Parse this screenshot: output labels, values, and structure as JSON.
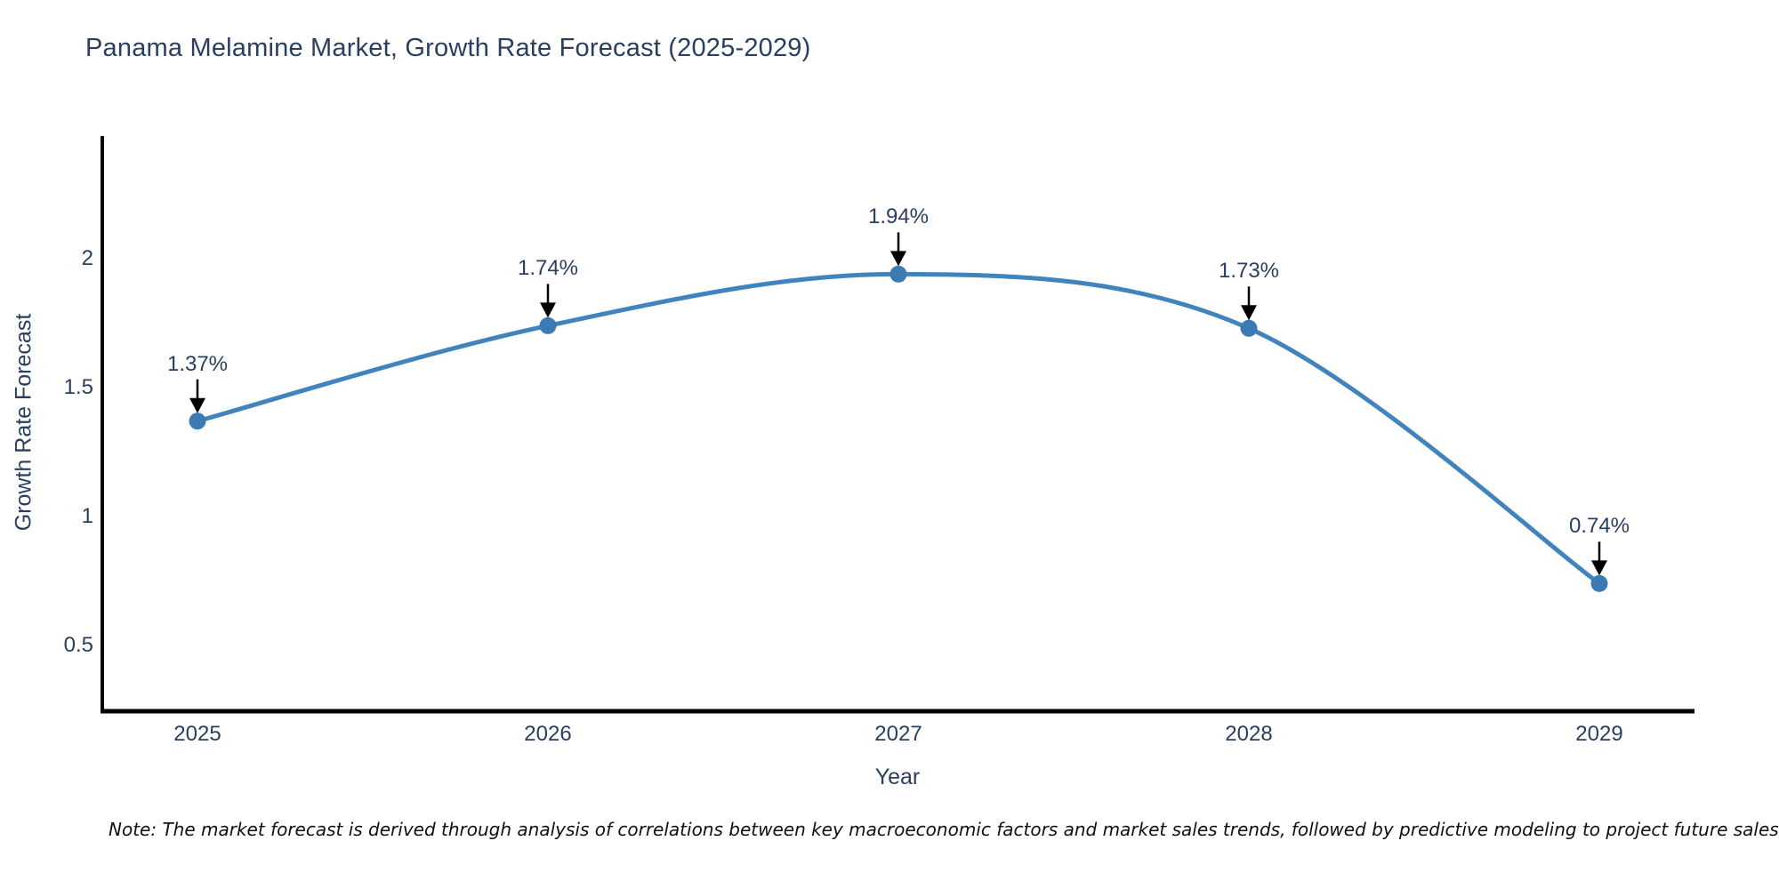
{
  "chart_data": {
    "type": "line",
    "title": "Panama Melamine Market, Growth Rate Forecast (2025-2029)",
    "xlabel": "Year",
    "ylabel": "Growth Rate Forecast",
    "x": [
      2025,
      2026,
      2027,
      2028,
      2029
    ],
    "series": [
      {
        "name": "Growth Rate Forecast",
        "values": [
          1.37,
          1.74,
          1.94,
          1.73,
          0.74
        ]
      }
    ],
    "point_labels": [
      "1.37%",
      "1.74%",
      "1.94%",
      "1.73%",
      "0.74%"
    ],
    "yticks": [
      0.5,
      1,
      1.5,
      2
    ],
    "ylim": [
      0.25,
      2.47
    ],
    "line_shape": "spline",
    "grid": false,
    "legend_position": "none",
    "line_color": "#4183bd",
    "marker_color": "#3c7ab5",
    "arrow_color": "#000000",
    "text_color": "#2a3f5f",
    "axis_color": "#000000"
  },
  "note": "Note: The market forecast is derived through analysis of correlations between key macroeconomic factors and market sales trends, followed by predictive modeling to project future sales"
}
